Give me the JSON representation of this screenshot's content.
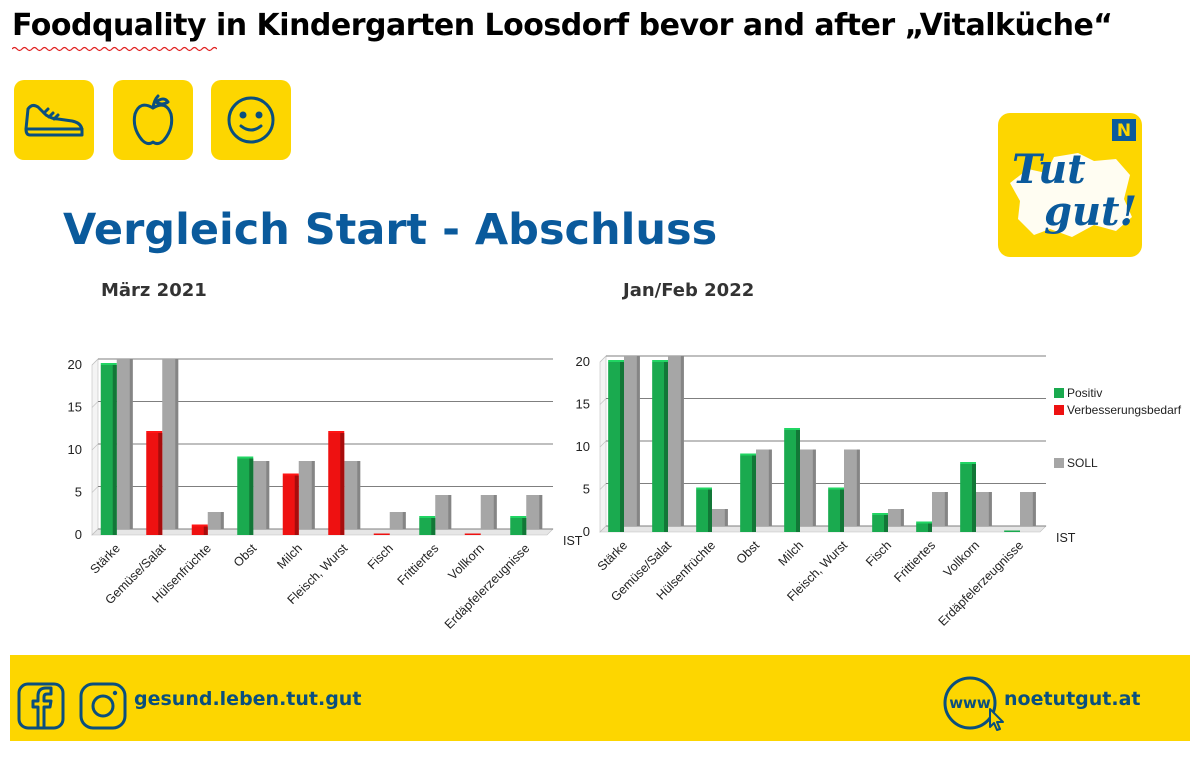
{
  "header": {
    "title": "Foodquality in Kindergarten Loosdorf bevor and after „Vitalküche“"
  },
  "icons": [
    "running-shoe-icon",
    "apple-icon",
    "smiley-icon"
  ],
  "logo": {
    "line1": "Tut",
    "line2": "gut!",
    "badge": "N"
  },
  "slide": {
    "heading": "Vergleich Start - Abschluss",
    "period_left": "März 2021",
    "period_right": "Jan/Feb 2022"
  },
  "colors": {
    "accent_yellow": "#fdd600",
    "brand_blue": "#0a5a9c",
    "positive": "#1aaa4f",
    "improvement": "#ee1111",
    "soll": "#a6a6a6"
  },
  "chart_data": [
    {
      "type": "bar",
      "title": "März 2021",
      "categories": [
        "Stärke",
        "Gemüse/Salat",
        "Hülsenfrüchte",
        "Obst",
        "Milch",
        "Fleisch, Wurst",
        "Fisch",
        "Frittiertes",
        "Vollkorn",
        "Erdäpfelerzeugnisse"
      ],
      "series": [
        {
          "name": "IST",
          "values": [
            20,
            12,
            1,
            9,
            7,
            12,
            0,
            2,
            0,
            2
          ],
          "colors": [
            "#1aaa4f",
            "#ee1111",
            "#ee1111",
            "#1aaa4f",
            "#ee1111",
            "#ee1111",
            "#ee1111",
            "#1aaa4f",
            "#ee1111",
            "#1aaa4f"
          ]
        },
        {
          "name": "SOLL",
          "values": [
            20,
            20,
            2,
            8,
            8,
            8,
            2,
            4,
            4,
            4
          ]
        }
      ],
      "series_label": "IST",
      "yticks": [
        0,
        5,
        10,
        15,
        20
      ],
      "ylim": [
        0,
        20
      ],
      "grid": true
    },
    {
      "type": "bar",
      "title": "Jan/Feb 2022",
      "categories": [
        "Stärke",
        "Gemüse/Salat",
        "Hülsenfrüchte",
        "Obst",
        "Milch",
        "Fleisch, Wurst",
        "Fisch",
        "Frittiertes",
        "Vollkorn",
        "Erdäpfelerzeugnisse"
      ],
      "series": [
        {
          "name": "IST",
          "values": [
            20,
            20,
            5,
            9,
            12,
            5,
            2,
            1,
            8,
            0
          ],
          "colors": [
            "#1aaa4f",
            "#1aaa4f",
            "#1aaa4f",
            "#1aaa4f",
            "#1aaa4f",
            "#1aaa4f",
            "#1aaa4f",
            "#1aaa4f",
            "#1aaa4f",
            "#1aaa4f"
          ]
        },
        {
          "name": "SOLL",
          "values": [
            20,
            20,
            2,
            9,
            9,
            9,
            2,
            4,
            4,
            4
          ]
        }
      ],
      "series_label": "IST",
      "yticks": [
        0,
        5,
        10,
        15,
        20
      ],
      "ylim": [
        0,
        20
      ],
      "grid": true,
      "legend": {
        "placement": "right",
        "entries": [
          {
            "label": "Positiv",
            "color": "#1aaa4f"
          },
          {
            "label": "Verbesserungsbedarf",
            "color": "#ee1111"
          },
          {
            "label": "SOLL",
            "color": "#a6a6a6"
          }
        ]
      }
    }
  ],
  "footer": {
    "social_text": "gesund.leben.tut.gut",
    "web_icon_text": "www",
    "web_text": "noetutgut.at",
    "icons": [
      "facebook-icon",
      "instagram-icon",
      "web-cursor-icon"
    ]
  }
}
